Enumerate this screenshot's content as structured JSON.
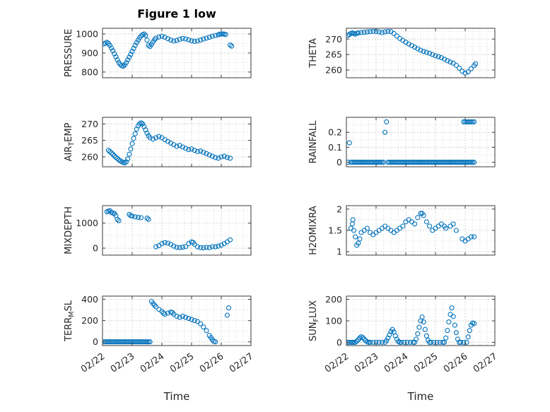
{
  "figure": {
    "title": "Figure 1 low",
    "xlabel": "Time"
  },
  "colors": {
    "marker": "#0072BD",
    "axis": "#3b3b3b",
    "grid_major": "#c8c8c8",
    "grid_minor": "#e3e3e3",
    "text": "#262626"
  },
  "chart_data": {
    "type": "scatter",
    "marker": "o",
    "x_axis": {
      "lim": [
        0,
        5
      ],
      "tick_values": [
        0,
        1,
        2,
        3,
        4,
        5
      ],
      "tick_labels": [
        "02/22",
        "02/23",
        "02/24",
        "02/25",
        "02/26",
        "02/27"
      ],
      "minor_step": 0.25
    },
    "subplots": [
      {
        "id": "pressure",
        "ylabel": {
          "pre": "PRESSURE",
          "sub": "",
          "post": ""
        },
        "ylim": [
          770,
          1030
        ],
        "yticks": [
          800,
          900,
          1000
        ],
        "ytick_labels": [
          "800",
          "900",
          "1000"
        ],
        "x": [
          0.05,
          0.1,
          0.15,
          0.2,
          0.25,
          0.3,
          0.35,
          0.4,
          0.45,
          0.5,
          0.55,
          0.6,
          0.65,
          0.7,
          0.75,
          0.8,
          0.85,
          0.9,
          0.95,
          1.0,
          1.05,
          1.1,
          1.15,
          1.2,
          1.25,
          1.3,
          1.35,
          1.4,
          1.45,
          1.5,
          1.55,
          1.6,
          1.65,
          1.7,
          1.75,
          1.8,
          1.9,
          2.0,
          2.1,
          2.2,
          2.3,
          2.4,
          2.5,
          2.6,
          2.7,
          2.8,
          2.9,
          3.0,
          3.1,
          3.2,
          3.3,
          3.4,
          3.5,
          3.6,
          3.7,
          3.8,
          3.9,
          3.95,
          4.0,
          4.05,
          4.1,
          4.15,
          4.3,
          4.35
        ],
        "y": [
          948,
          952,
          956,
          950,
          940,
          926,
          912,
          896,
          880,
          864,
          850,
          840,
          833,
          830,
          838,
          850,
          864,
          878,
          893,
          908,
          924,
          940,
          955,
          968,
          980,
          990,
          996,
          1000,
          993,
          968,
          940,
          934,
          945,
          958,
          970,
          978,
          984,
          988,
          983,
          975,
          968,
          963,
          966,
          972,
          977,
          974,
          969,
          964,
          961,
          963,
          968,
          973,
          978,
          983,
          988,
          992,
          996,
          999,
          1000,
          1000,
          999,
          997,
          942,
          936
        ]
      },
      {
        "id": "theta",
        "ylabel": {
          "pre": "THETA",
          "sub": "",
          "post": ""
        },
        "ylim": [
          257.5,
          273.5
        ],
        "yticks": [
          260,
          265,
          270
        ],
        "ytick_labels": [
          "260",
          "265",
          "270"
        ],
        "x": [
          0.05,
          0.1,
          0.15,
          0.2,
          0.25,
          0.3,
          0.35,
          0.4,
          0.5,
          0.6,
          0.7,
          0.8,
          0.9,
          1.0,
          1.1,
          1.2,
          1.3,
          1.4,
          1.5,
          1.6,
          1.7,
          1.8,
          1.9,
          2.0,
          2.1,
          2.2,
          2.3,
          2.4,
          2.5,
          2.6,
          2.7,
          2.8,
          2.9,
          3.0,
          3.1,
          3.2,
          3.3,
          3.4,
          3.5,
          3.6,
          3.7,
          3.8,
          3.9,
          4.0,
          4.1,
          4.2,
          4.3,
          4.35
        ],
        "y": [
          271.2,
          271.5,
          271.8,
          272.0,
          271.8,
          271.6,
          271.9,
          272.0,
          272.1,
          272.2,
          272.3,
          272.4,
          272.5,
          272.5,
          272.3,
          272.1,
          272.3,
          272.5,
          272.4,
          271.8,
          271.0,
          270.2,
          269.6,
          269.0,
          268.4,
          267.9,
          267.4,
          266.9,
          266.4,
          266.0,
          265.7,
          265.4,
          265.0,
          264.6,
          264.3,
          264.0,
          263.5,
          263.0,
          262.6,
          262.2,
          261.5,
          260.6,
          259.6,
          259.0,
          259.4,
          260.4,
          261.4,
          262.0
        ]
      },
      {
        "id": "airtemp",
        "ylabel": {
          "pre": "AIR",
          "sub": "T",
          "post": "EMP"
        },
        "ylim": [
          257,
          272
        ],
        "yticks": [
          260,
          265,
          270
        ],
        "ytick_labels": [
          "260",
          "265",
          "270"
        ],
        "x": [
          0.2,
          0.25,
          0.3,
          0.35,
          0.4,
          0.45,
          0.5,
          0.55,
          0.6,
          0.65,
          0.7,
          0.75,
          0.8,
          0.85,
          0.9,
          0.95,
          1.0,
          1.05,
          1.1,
          1.15,
          1.2,
          1.25,
          1.3,
          1.35,
          1.4,
          1.45,
          1.5,
          1.55,
          1.6,
          1.7,
          1.8,
          1.9,
          2.0,
          2.1,
          2.2,
          2.3,
          2.4,
          2.5,
          2.6,
          2.7,
          2.8,
          2.9,
          3.0,
          3.1,
          3.2,
          3.3,
          3.4,
          3.5,
          3.6,
          3.7,
          3.8,
          3.9,
          4.0,
          4.1,
          4.2,
          4.3
        ],
        "y": [
          262.0,
          261.6,
          261.2,
          260.8,
          260.3,
          259.9,
          259.5,
          259.1,
          258.8,
          258.5,
          258.3,
          258.2,
          258.5,
          259.4,
          260.8,
          262.4,
          264.0,
          265.6,
          267.0,
          268.4,
          269.4,
          270.0,
          270.3,
          270.0,
          269.2,
          268.2,
          267.2,
          266.4,
          265.8,
          265.4,
          265.8,
          266.2,
          265.8,
          265.2,
          264.7,
          264.2,
          263.7,
          263.2,
          263.5,
          263.0,
          262.6,
          262.2,
          262.4,
          262.0,
          261.6,
          261.8,
          261.4,
          261.0,
          260.6,
          260.2,
          259.8,
          259.6,
          260.0,
          260.2,
          259.8,
          259.6
        ]
      },
      {
        "id": "rainfall",
        "ylabel": {
          "pre": "RAINFALL",
          "sub": "",
          "post": ""
        },
        "ylim": [
          -0.03,
          0.3
        ],
        "yticks": [
          0,
          0.1,
          0.2
        ],
        "ytick_labels": [
          "0",
          "0.1",
          "0.2"
        ],
        "x": [
          0.05,
          0.1,
          0.15,
          0.2,
          0.25,
          0.3,
          0.35,
          0.4,
          0.45,
          0.5,
          0.55,
          0.6,
          0.65,
          0.7,
          0.75,
          0.8,
          0.85,
          0.9,
          0.95,
          1.0,
          1.05,
          1.1,
          1.15,
          1.2,
          1.25,
          1.3,
          1.35,
          1.4,
          1.45,
          1.5,
          1.55,
          1.6,
          1.65,
          1.7,
          1.75,
          1.8,
          1.85,
          1.9,
          1.95,
          2.0,
          2.05,
          2.1,
          2.15,
          2.2,
          2.25,
          2.3,
          2.35,
          2.4,
          2.45,
          2.5,
          2.55,
          2.6,
          2.65,
          2.7,
          2.75,
          2.8,
          2.85,
          2.9,
          2.95,
          3.0,
          3.05,
          3.1,
          3.15,
          3.2,
          3.25,
          3.3,
          3.35,
          3.4,
          3.45,
          3.5,
          3.55,
          3.6,
          3.65,
          3.7,
          3.75,
          3.8,
          3.85,
          3.9,
          3.95,
          4.0,
          4.05,
          4.1,
          4.15,
          4.2,
          4.25,
          4.3,
          3.95,
          4.0,
          4.05,
          4.1,
          4.15,
          4.2,
          4.25,
          4.3
        ],
        "y": [
          0,
          0.13,
          0,
          0,
          0,
          0,
          0,
          0,
          0,
          0,
          0,
          0,
          0,
          0,
          0,
          0,
          0,
          0,
          0,
          0,
          0,
          0,
          0,
          0,
          0,
          0.2,
          0.27,
          0,
          0,
          0,
          0,
          0,
          0,
          0,
          0,
          0,
          0,
          0,
          0,
          0,
          0,
          0,
          0,
          0,
          0,
          0,
          0,
          0,
          0,
          0,
          0,
          0,
          0,
          0,
          0,
          0,
          0,
          0,
          0,
          0,
          0,
          0,
          0,
          0,
          0,
          0,
          0,
          0,
          0,
          0,
          0,
          0,
          0,
          0,
          0,
          0,
          0,
          0,
          0,
          0,
          0,
          0,
          0,
          0,
          0,
          0,
          0.27,
          0.27,
          0.27,
          0.27,
          0.27,
          0.27,
          0.27,
          0.27
        ]
      },
      {
        "id": "mixdepth",
        "ylabel": {
          "pre": "MIXDEPTH",
          "sub": "",
          "post": ""
        },
        "ylim": [
          -280,
          1700
        ],
        "yticks": [
          0,
          1000
        ],
        "ytick_labels": [
          "0",
          "1000"
        ],
        "x": [
          0.15,
          0.2,
          0.25,
          0.3,
          0.35,
          0.4,
          0.45,
          0.5,
          0.55,
          0.9,
          0.95,
          1.0,
          1.1,
          1.2,
          1.3,
          1.5,
          1.55,
          1.8,
          1.9,
          2.0,
          2.1,
          2.2,
          2.3,
          2.4,
          2.5,
          2.6,
          2.7,
          2.8,
          2.9,
          3.0,
          3.05,
          3.1,
          3.2,
          3.3,
          3.4,
          3.5,
          3.6,
          3.7,
          3.8,
          3.9,
          4.0,
          4.1,
          4.2,
          4.3
        ],
        "y": [
          1450,
          1480,
          1500,
          1430,
          1400,
          1380,
          1300,
          1150,
          1100,
          1350,
          1300,
          1280,
          1250,
          1230,
          1220,
          1200,
          1150,
          50,
          100,
          180,
          220,
          200,
          150,
          80,
          30,
          20,
          40,
          60,
          180,
          250,
          230,
          150,
          50,
          20,
          10,
          30,
          20,
          60,
          50,
          80,
          120,
          180,
          250,
          330
        ]
      },
      {
        "id": "h2omixra",
        "ylabel": {
          "pre": "H2OMIXRA",
          "sub": "",
          "post": ""
        },
        "ylim": [
          0.92,
          2.08
        ],
        "yticks": [
          1,
          1.5,
          2
        ],
        "ytick_labels": [
          "1",
          "1.5",
          "2"
        ],
        "x": [
          0.15,
          0.2,
          0.22,
          0.25,
          0.3,
          0.35,
          0.4,
          0.45,
          0.5,
          0.6,
          0.7,
          0.8,
          0.9,
          1.0,
          1.1,
          1.2,
          1.3,
          1.4,
          1.5,
          1.6,
          1.7,
          1.8,
          1.9,
          2.0,
          2.1,
          2.2,
          2.3,
          2.4,
          2.5,
          2.55,
          2.6,
          2.7,
          2.8,
          2.9,
          3.0,
          3.1,
          3.2,
          3.3,
          3.35,
          3.5,
          3.6,
          3.7,
          3.9,
          4.0,
          4.1,
          4.2,
          4.3
        ],
        "y": [
          1.55,
          1.65,
          1.75,
          1.5,
          1.35,
          1.15,
          1.2,
          1.3,
          1.45,
          1.5,
          1.55,
          1.45,
          1.4,
          1.45,
          1.5,
          1.55,
          1.6,
          1.55,
          1.5,
          1.45,
          1.5,
          1.55,
          1.6,
          1.7,
          1.75,
          1.7,
          1.65,
          1.8,
          1.9,
          1.9,
          1.85,
          1.7,
          1.6,
          1.5,
          1.55,
          1.6,
          1.65,
          1.6,
          1.55,
          1.6,
          1.65,
          1.5,
          1.3,
          1.25,
          1.3,
          1.35,
          1.35
        ]
      },
      {
        "id": "terr-msl",
        "ylabel": {
          "pre": "TERR",
          "sub": "M",
          "post": "SL"
        },
        "ylim": [
          -35,
          430
        ],
        "yticks": [
          0,
          200,
          400
        ],
        "ytick_labels": [
          "0",
          "200",
          "400"
        ],
        "x": [
          0.05,
          0.1,
          0.15,
          0.2,
          0.25,
          0.3,
          0.35,
          0.4,
          0.45,
          0.5,
          0.55,
          0.6,
          0.65,
          0.7,
          0.75,
          0.8,
          0.85,
          0.9,
          0.95,
          1.0,
          1.05,
          1.1,
          1.15,
          1.2,
          1.25,
          1.3,
          1.35,
          1.4,
          1.45,
          1.5,
          1.55,
          1.6,
          1.65,
          1.7,
          1.75,
          1.8,
          1.9,
          2.0,
          2.05,
          2.1,
          2.2,
          2.3,
          2.35,
          2.4,
          2.5,
          2.6,
          2.7,
          2.8,
          2.9,
          3.0,
          3.1,
          3.2,
          3.3,
          3.4,
          3.5,
          3.6,
          3.65,
          3.7,
          3.75,
          3.8,
          4.2,
          4.25
        ],
        "y": [
          0,
          0,
          0,
          0,
          0,
          0,
          0,
          0,
          0,
          0,
          0,
          0,
          0,
          0,
          0,
          0,
          0,
          0,
          0,
          0,
          0,
          0,
          0,
          0,
          0,
          0,
          0,
          0,
          0,
          0,
          0,
          0,
          380,
          360,
          345,
          330,
          305,
          285,
          270,
          260,
          270,
          280,
          275,
          260,
          240,
          230,
          240,
          230,
          220,
          210,
          200,
          190,
          170,
          140,
          105,
          60,
          40,
          20,
          5,
          0,
          250,
          320
        ]
      },
      {
        "id": "sun-flux",
        "ylabel": {
          "pre": "SUN",
          "sub": "F",
          "post": "LUX"
        },
        "ylim": [
          -15,
          215
        ],
        "yticks": [
          0,
          100,
          200
        ],
        "ytick_labels": [
          "0",
          "100",
          "200"
        ],
        "x": [
          0.05,
          0.1,
          0.15,
          0.2,
          0.25,
          0.3,
          0.35,
          0.4,
          0.45,
          0.5,
          0.55,
          0.6,
          0.65,
          0.7,
          0.75,
          0.8,
          0.9,
          1.0,
          1.1,
          1.2,
          1.3,
          1.35,
          1.4,
          1.45,
          1.5,
          1.55,
          1.6,
          1.65,
          1.7,
          1.75,
          1.8,
          1.85,
          1.95,
          2.05,
          2.15,
          2.25,
          2.3,
          2.35,
          2.4,
          2.45,
          2.5,
          2.55,
          2.6,
          2.65,
          2.7,
          2.75,
          2.8,
          2.85,
          2.95,
          3.05,
          3.15,
          3.25,
          3.3,
          3.35,
          3.4,
          3.45,
          3.5,
          3.55,
          3.6,
          3.65,
          3.7,
          3.75,
          3.8,
          3.85,
          3.95,
          4.05,
          4.1,
          4.15,
          4.2,
          4.25,
          4.3
        ],
        "y": [
          0,
          0,
          0,
          0,
          0,
          0,
          5,
          12,
          20,
          26,
          22,
          15,
          8,
          2,
          0,
          0,
          0,
          0,
          0,
          0,
          0,
          8,
          20,
          35,
          50,
          60,
          48,
          30,
          15,
          4,
          0,
          0,
          0,
          0,
          0,
          0,
          0,
          15,
          40,
          70,
          100,
          118,
          95,
          60,
          30,
          10,
          0,
          0,
          0,
          0,
          0,
          0,
          0,
          20,
          55,
          95,
          130,
          160,
          120,
          80,
          45,
          15,
          0,
          0,
          0,
          0,
          25,
          55,
          80,
          90,
          88
        ]
      }
    ]
  }
}
